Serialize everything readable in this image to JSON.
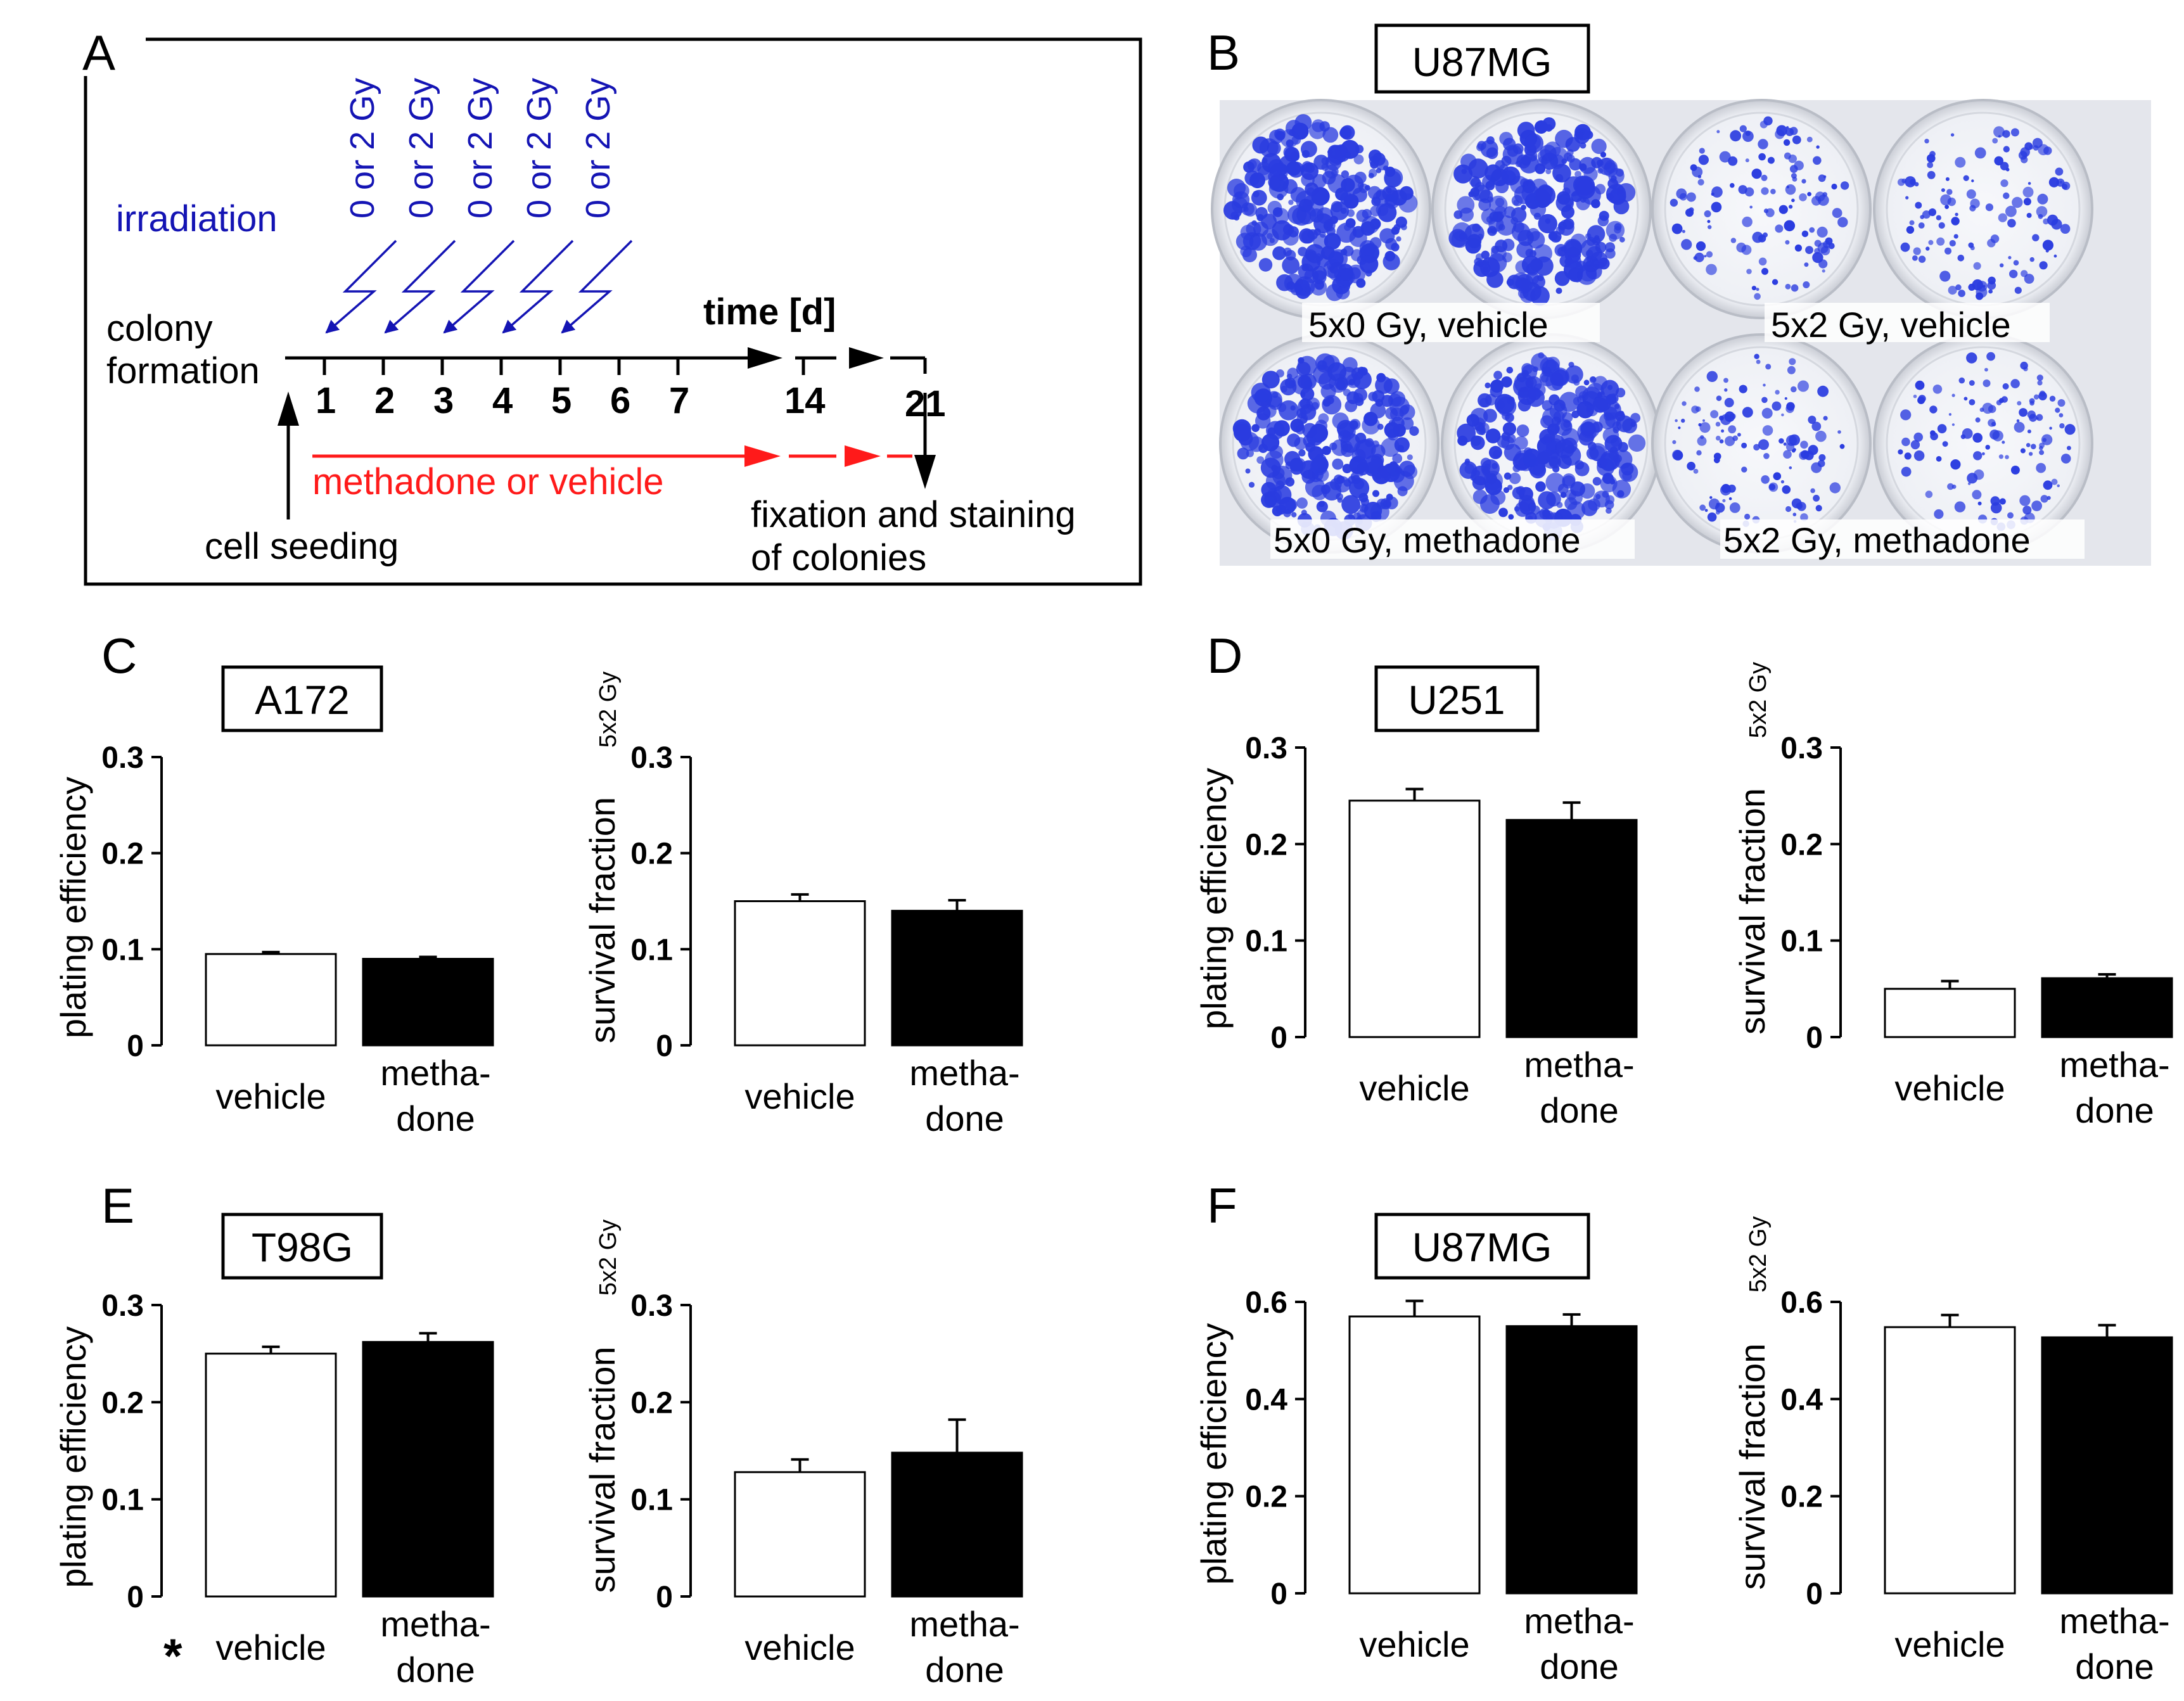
{
  "colors": {
    "blue": "#1414b4",
    "red": "#ff1a1a",
    "black": "#000000",
    "colony": "#2a3ce0"
  },
  "panelA": {
    "letter": "A",
    "doses": [
      "0 or 2 Gy",
      "0 or 2 Gy",
      "0 or 2 Gy",
      "0 or 2 Gy",
      "0 or 2 Gy"
    ],
    "irradiation": "irradiation",
    "colony": "colony",
    "formation": "formation",
    "time": "time [d]",
    "days": [
      "1",
      "2",
      "3",
      "4",
      "5",
      "6",
      "7",
      "14",
      "21"
    ],
    "treatment": "methadone or vehicle",
    "seeding": "cell seeding",
    "fixation1": "fixation and staining",
    "fixation2": "of colonies"
  },
  "panelB": {
    "letter": "B",
    "cell_line": "U87MG",
    "labels": [
      "5x0 Gy, vehicle",
      "5x2 Gy, vehicle",
      "5x0 Gy, methadone",
      "5x2 Gy, methadone"
    ]
  },
  "panels": {
    "C": {
      "letter": "C",
      "cell_line": "A172"
    },
    "D": {
      "letter": "D",
      "cell_line": "U251"
    },
    "E": {
      "letter": "E",
      "cell_line": "T98G",
      "asterisk": "*"
    },
    "F": {
      "letter": "F",
      "cell_line": "U87MG"
    }
  },
  "chart_data": [
    {
      "id": "C-pe",
      "panel": "C",
      "type": "bar",
      "ylabel": "plating efficiency",
      "ylabel_sub": "",
      "ylim": [
        0,
        0.3
      ],
      "yticks": [
        "0",
        "0.1",
        "0.2",
        "0.3"
      ],
      "tickvals": [
        0,
        0.1,
        0.2,
        0.3
      ],
      "categories": [
        [
          "vehicle"
        ],
        [
          "metha-",
          "done"
        ]
      ],
      "values": [
        0.095,
        0.09
      ],
      "errors": [
        0.002,
        0.002
      ]
    },
    {
      "id": "C-sf",
      "panel": "C",
      "type": "bar",
      "ylabel": "survival fraction",
      "ylabel_sub": "5x2 Gy",
      "ylim": [
        0,
        0.3
      ],
      "yticks": [
        "0",
        "0.1",
        "0.2",
        "0.3"
      ],
      "tickvals": [
        0,
        0.1,
        0.2,
        0.3
      ],
      "categories": [
        [
          "vehicle"
        ],
        [
          "metha-",
          "done"
        ]
      ],
      "values": [
        0.15,
        0.14
      ],
      "errors": [
        0.007,
        0.011
      ]
    },
    {
      "id": "D-pe",
      "panel": "D",
      "type": "bar",
      "ylabel": "plating efficiency",
      "ylabel_sub": "",
      "ylim": [
        0,
        0.3
      ],
      "yticks": [
        "0",
        "0.1",
        "0.2",
        "0.3"
      ],
      "tickvals": [
        0,
        0.1,
        0.2,
        0.3
      ],
      "categories": [
        [
          "vehicle"
        ],
        [
          "metha-",
          "done"
        ]
      ],
      "values": [
        0.245,
        0.225
      ],
      "errors": [
        0.012,
        0.018
      ]
    },
    {
      "id": "D-sf",
      "panel": "D",
      "type": "bar",
      "ylabel": "survival fraction",
      "ylabel_sub": "5x2 Gy",
      "ylim": [
        0,
        0.3
      ],
      "yticks": [
        "0",
        "0.1",
        "0.2",
        "0.3"
      ],
      "tickvals": [
        0,
        0.1,
        0.2,
        0.3
      ],
      "categories": [
        [
          "vehicle"
        ],
        [
          "metha-",
          "done"
        ]
      ],
      "values": [
        0.05,
        0.061
      ],
      "errors": [
        0.008,
        0.004
      ]
    },
    {
      "id": "E-pe",
      "panel": "E",
      "type": "bar",
      "ylabel": "plating efficiency",
      "ylabel_sub": "",
      "ylim": [
        0,
        0.3
      ],
      "yticks": [
        "0",
        "0.1",
        "0.2",
        "0.3"
      ],
      "tickvals": [
        0,
        0.1,
        0.2,
        0.3
      ],
      "categories": [
        [
          "vehicle"
        ],
        [
          "metha-",
          "done"
        ]
      ],
      "values": [
        0.25,
        0.262
      ],
      "errors": [
        0.007,
        0.009
      ]
    },
    {
      "id": "E-sf",
      "panel": "E",
      "type": "bar",
      "ylabel": "survival fraction",
      "ylabel_sub": "5x2 Gy",
      "ylim": [
        0,
        0.3
      ],
      "yticks": [
        "0",
        "0.1",
        "0.2",
        "0.3"
      ],
      "tickvals": [
        0,
        0.1,
        0.2,
        0.3
      ],
      "categories": [
        [
          "vehicle"
        ],
        [
          "metha-",
          "done"
        ]
      ],
      "values": [
        0.128,
        0.148
      ],
      "errors": [
        0.013,
        0.034
      ]
    },
    {
      "id": "F-pe",
      "panel": "F",
      "type": "bar",
      "ylabel": "plating efficiency",
      "ylabel_sub": "",
      "ylim": [
        0,
        0.6
      ],
      "yticks": [
        "0",
        "0.2",
        "0.4",
        "0.6"
      ],
      "tickvals": [
        0,
        0.2,
        0.4,
        0.6
      ],
      "categories": [
        [
          "vehicle"
        ],
        [
          "metha-",
          "done"
        ]
      ],
      "values": [
        0.57,
        0.55
      ],
      "errors": [
        0.032,
        0.024
      ]
    },
    {
      "id": "F-sf",
      "panel": "F",
      "type": "bar",
      "ylabel": "survival fraction",
      "ylabel_sub": "5x2 Gy",
      "ylim": [
        0,
        0.6
      ],
      "yticks": [
        "0",
        "0.2",
        "0.4",
        "0.6"
      ],
      "tickvals": [
        0,
        0.2,
        0.4,
        0.6
      ],
      "categories": [
        [
          "vehicle"
        ],
        [
          "metha-",
          "done"
        ]
      ],
      "values": [
        0.548,
        0.527
      ],
      "errors": [
        0.025,
        0.025
      ]
    }
  ]
}
